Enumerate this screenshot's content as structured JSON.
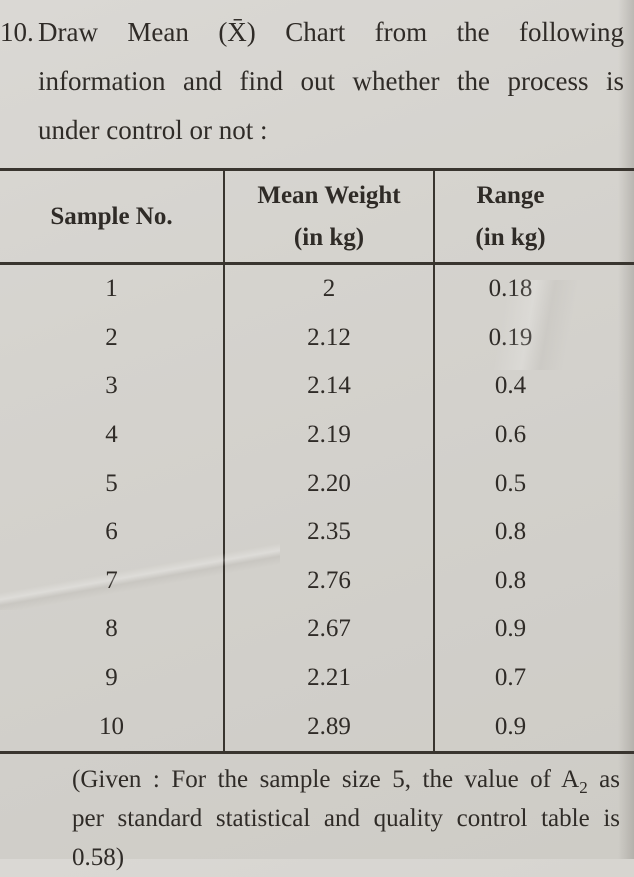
{
  "question": {
    "number": "10.",
    "lines": [
      "Draw Mean (X̄) Chart from the following",
      "information and find out whether the process is",
      "under control or not :"
    ]
  },
  "table": {
    "headers": {
      "col1": {
        "line1": "Sample No.",
        "line2": ""
      },
      "col2": {
        "line1": "Mean Weight",
        "line2": "(in kg)"
      },
      "col3": {
        "line1": "Range",
        "line2": "(in kg)"
      }
    },
    "rows": [
      {
        "sample_no": "1",
        "mean_weight": "2",
        "range": "0.18"
      },
      {
        "sample_no": "2",
        "mean_weight": "2.12",
        "range": "0.19"
      },
      {
        "sample_no": "3",
        "mean_weight": "2.14",
        "range": "0.4"
      },
      {
        "sample_no": "4",
        "mean_weight": "2.19",
        "range": "0.6"
      },
      {
        "sample_no": "5",
        "mean_weight": "2.20",
        "range": "0.5"
      },
      {
        "sample_no": "6",
        "mean_weight": "2.35",
        "range": "0.8"
      },
      {
        "sample_no": "7",
        "mean_weight": "2.76",
        "range": "0.8"
      },
      {
        "sample_no": "8",
        "mean_weight": "2.67",
        "range": "0.9"
      },
      {
        "sample_no": "9",
        "mean_weight": "2.21",
        "range": "0.7"
      },
      {
        "sample_no": "10",
        "mean_weight": "2.89",
        "range": "0.9"
      }
    ]
  },
  "footnote": {
    "line1_pre": "(Given : For the sample size 5, the value of A",
    "line1_sub": "2",
    "line1_post": " as",
    "line2": "per standard statistical and quality control table is",
    "line3": "0.58)"
  },
  "colors": {
    "paper": "#d5d3ce",
    "ink": "#2f2b27",
    "rule": "#39352f"
  }
}
